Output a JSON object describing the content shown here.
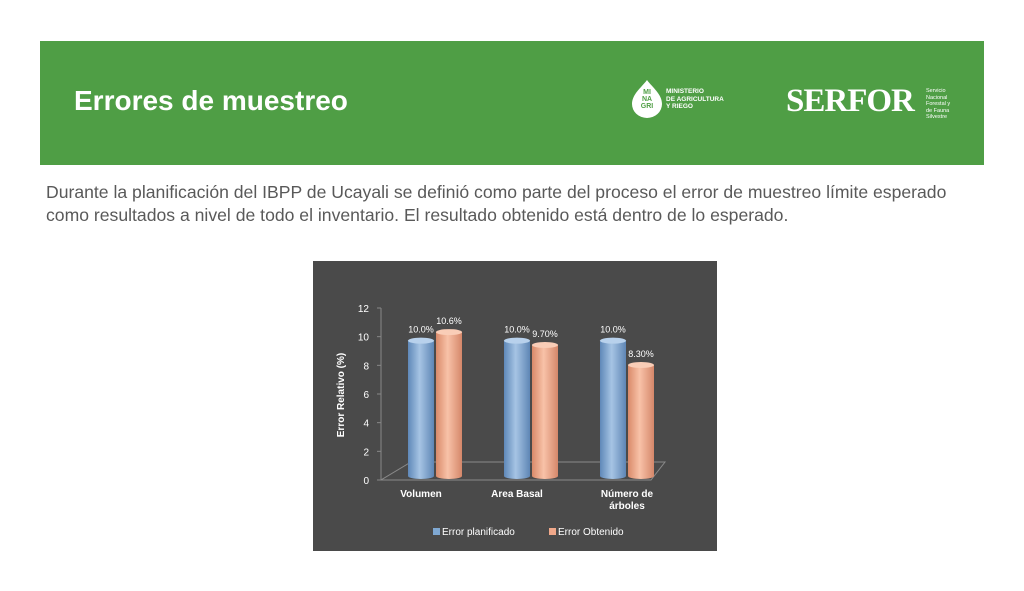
{
  "header": {
    "title": "Errores de muestreo",
    "minagri_logo_text": "MI\nNA\nGRI",
    "ministry_text": "MINISTERIO\nDE AGRICULTURA\nY RIEGO",
    "serfor_logo": "SERFOR",
    "serfor_subtitle": "Servicio\nNacional\nForestal y\nde Fauna\nSilvestre",
    "banner_color": "#4f9e45"
  },
  "body": {
    "paragraph": "Durante la planificación del IBPP de Ucayali se definió como parte del proceso el error de muestreo límite esperado como resultados a nivel de todo el inventario. El resultado obtenido está dentro de lo esperado."
  },
  "chart_data": {
    "type": "bar",
    "style": "3d-cylinder",
    "categories": [
      "Volumen",
      "Area Basal",
      "Número de árboles"
    ],
    "series": [
      {
        "name": "Error planificado",
        "values": [
          10.0,
          10.0,
          10.0
        ],
        "labels": [
          "10.0%",
          "10.0%",
          "10.0%"
        ],
        "color": "#7fa8d2"
      },
      {
        "name": "Error Obtenido",
        "values": [
          10.6,
          9.7,
          8.3
        ],
        "labels": [
          "10.6%",
          "9.70%",
          "8.30%"
        ],
        "color": "#f0a88a"
      }
    ],
    "ylabel": "Error Relativo (%)",
    "ylim": [
      0,
      12
    ],
    "yticks": [
      "0",
      "2",
      "4",
      "6",
      "8",
      "10",
      "12"
    ],
    "legend_position": "bottom",
    "background": "#4a4a4a"
  }
}
